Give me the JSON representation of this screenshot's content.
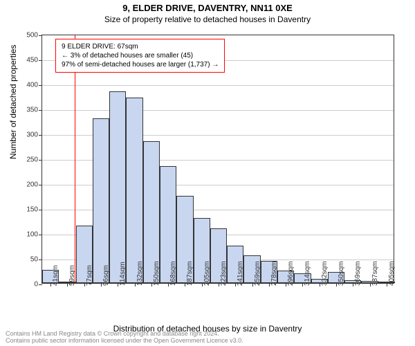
{
  "header": {
    "title": "9, ELDER DRIVE, DAVENTRY, NN11 0XE",
    "subtitle": "Size of property relative to detached houses in Daventry"
  },
  "chart": {
    "type": "histogram",
    "ylabel": "Number of detached properties",
    "xlabel": "Distribution of detached houses by size in Daventry",
    "ylim": [
      0,
      500
    ],
    "ytick_step": 50,
    "yticks": [
      0,
      50,
      100,
      150,
      200,
      250,
      300,
      350,
      400,
      450,
      500
    ],
    "xticks": [
      "41sqm",
      "59sqm",
      "77sqm",
      "96sqm",
      "114sqm",
      "132sqm",
      "150sqm",
      "168sqm",
      "187sqm",
      "205sqm",
      "223sqm",
      "241sqm",
      "259sqm",
      "278sqm",
      "296sqm",
      "314sqm",
      "332sqm",
      "350sqm",
      "369sqm",
      "387sqm",
      "405sqm"
    ],
    "values": [
      26,
      2,
      115,
      330,
      385,
      372,
      285,
      235,
      175,
      130,
      110,
      75,
      55,
      45,
      25,
      20,
      8,
      22,
      5,
      4,
      3
    ],
    "bar_color": "#c8d6f0",
    "bar_border_color": "#333333",
    "grid_color": "#cccccc",
    "background_color": "#ffffff",
    "reference_line": {
      "position_sqm": 67,
      "color": "#ff0000"
    }
  },
  "info_box": {
    "line1": "9 ELDER DRIVE: 67sqm",
    "line2": "← 3% of detached houses are smaller (45)",
    "line3": "97% of semi-detached houses are larger (1,737) →",
    "border_color": "#ff0000"
  },
  "footer": {
    "line1": "Contains HM Land Registry data © Crown copyright and database right 2024.",
    "line2": "Contains public sector information licensed under the Open Government Licence v3.0."
  }
}
